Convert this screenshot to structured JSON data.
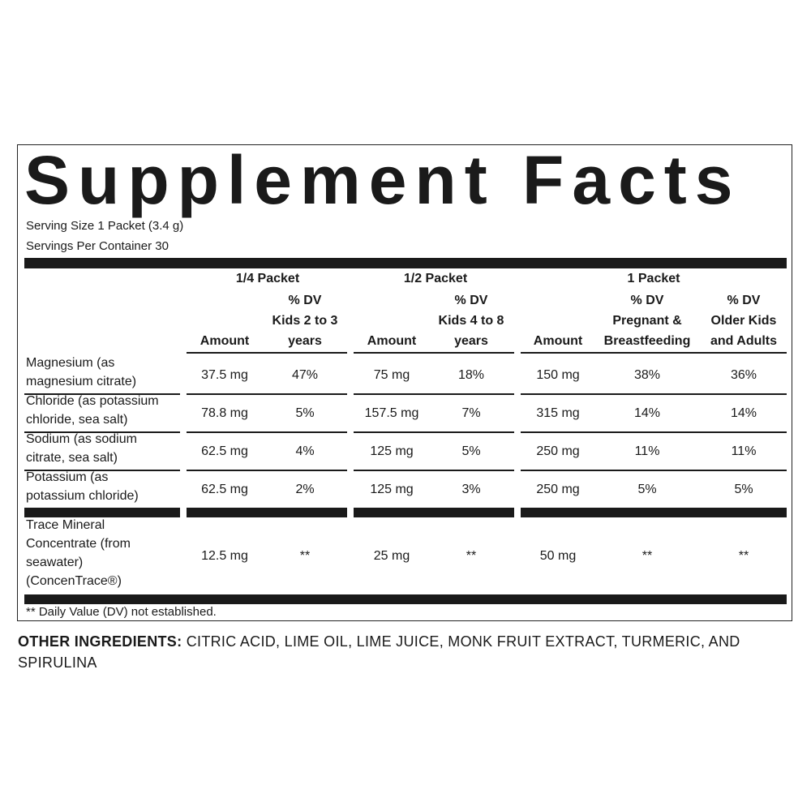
{
  "title": "Supplement Facts",
  "serving_size": "Serving Size 1 Packet (3.4 g)",
  "servings_per_container": "Servings Per Container 30",
  "table": {
    "groups": [
      "1/4 Packet",
      "1/2 Packet",
      "1 Packet"
    ],
    "headers": [
      [
        "Amount"
      ],
      [
        "% DV",
        "Kids 2 to 3",
        "years"
      ],
      [
        "Amount"
      ],
      [
        "% DV",
        "Kids 4 to 8",
        "years"
      ],
      [
        "Amount"
      ],
      [
        "% DV",
        "Pregnant &",
        "Breastfeeding"
      ],
      [
        "% DV",
        "Older Kids",
        "and Adults"
      ]
    ],
    "rows": [
      [
        [
          "Magnesium (as",
          "magnesium citrate)"
        ],
        "37.5 mg",
        "47%",
        "75 mg",
        "18%",
        "150 mg",
        "38%",
        "36%"
      ],
      [
        [
          "Chloride (as potassium",
          "chloride, sea salt)"
        ],
        "78.8 mg",
        "5%",
        "157.5 mg",
        "7%",
        "315 mg",
        "14%",
        "14%"
      ],
      [
        [
          "Sodium (as sodium",
          "citrate, sea salt)"
        ],
        "62.5 mg",
        "4%",
        "125 mg",
        "5%",
        "250 mg",
        "11%",
        "11%"
      ],
      [
        [
          "Potassium (as",
          "potassium chloride)"
        ],
        "62.5 mg",
        "2%",
        "125 mg",
        "3%",
        "250 mg",
        "5%",
        "5%"
      ],
      [
        [
          "Trace Mineral",
          "Concentrate (from",
          "seawater)",
          "(ConcenTrace®)"
        ],
        "12.5 mg",
        "**",
        "25 mg",
        "**",
        "50 mg",
        "**",
        "**"
      ]
    ]
  },
  "footnote": "** Daily Value (DV) not established.",
  "other_ingredients": {
    "label": "OTHER INGREDIENTS:",
    "text": "CITRIC ACID, LIME OIL, LIME JUICE, MONK FRUIT EXTRACT, TURMERIC, AND SPIRULINA"
  }
}
